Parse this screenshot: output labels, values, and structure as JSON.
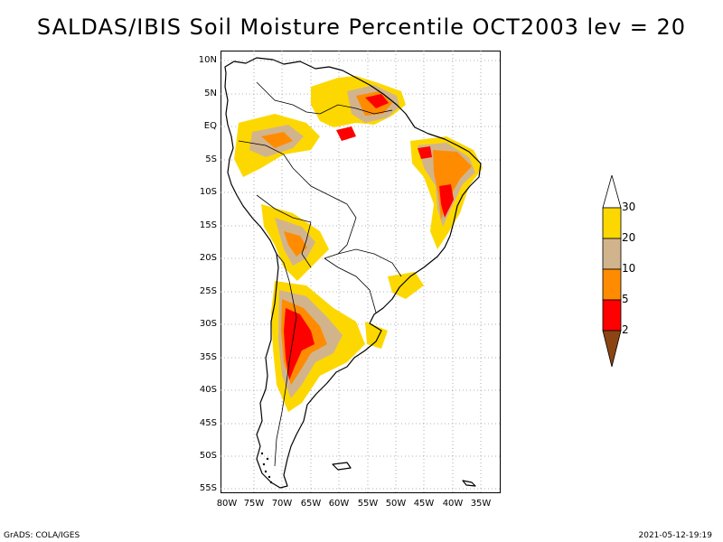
{
  "title": "SALDAS/IBIS Soil Moisture Percentile OCT2003 lev = 20",
  "y_axis_labels": [
    "10N",
    "5N",
    "EQ",
    "5S",
    "10S",
    "15S",
    "20S",
    "25S",
    "30S",
    "35S",
    "40S",
    "45S",
    "50S",
    "55S"
  ],
  "x_axis_labels": [
    "80W",
    "75W",
    "70W",
    "65W",
    "60W",
    "55W",
    "50W",
    "45W",
    "40W",
    "35W"
  ],
  "legend": {
    "labels": [
      "30",
      "20",
      "10",
      "5",
      "2"
    ],
    "colors": [
      "#ffffff",
      "#fdd800",
      "#d2b48c",
      "#ff8c00",
      "#ff0000",
      "#8b4513"
    ]
  },
  "footer": {
    "left": "GrADS: COLA/IGES",
    "right": "2021-05-12-19:19"
  }
}
